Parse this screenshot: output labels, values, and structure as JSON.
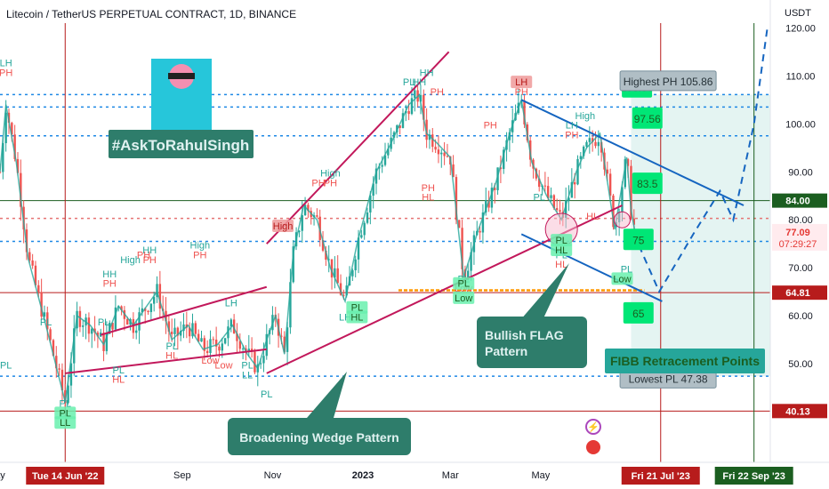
{
  "header": {
    "title": "Litecoin / TetherUS PERPETUAL CONTRACT, 1D, BINANCE",
    "currency": "USDT"
  },
  "colors": {
    "up": "#26a69a",
    "down": "#ef5350",
    "wedge": "#c2185b",
    "flag": "#1565c0",
    "level_blue": "#2962ff",
    "green_label": "#00c853",
    "teal_callout": "#2e7d6b"
  },
  "chart_data": {
    "type": "line",
    "symbol": "LTCUSDT.P",
    "interval": "1D",
    "ylim": [
      35,
      121
    ],
    "y_ticks": [
      50,
      60,
      70,
      80,
      90,
      100,
      110,
      120
    ],
    "y_tick_labels": [
      "50.00",
      "60.00",
      "70.00",
      "80.00",
      "90.00",
      "100.00",
      "110.00",
      "120.00"
    ],
    "x_tick_labels": [
      "ay",
      "Sep",
      "Nov",
      "2023",
      "Mar",
      "May"
    ],
    "x_tick_dates": [
      "2022-05-01",
      "2022-09-01",
      "2022-11-01",
      "2023-01-01",
      "2023-03-01",
      "2023-05-01"
    ],
    "x_range": [
      "2022-05-01",
      "2023-10-03"
    ],
    "x_date_highlights": [
      {
        "label": "Tue 14 Jun '22",
        "date": "2022-06-14",
        "color": "#b71c1c"
      },
      {
        "label": "Fri 21 Jul '23",
        "date": "2023-07-21",
        "color": "#b71c1c"
      },
      {
        "label": "Fri 22 Sep '23",
        "date": "2023-09-22",
        "color": "#1b5e20"
      }
    ],
    "price_path": {
      "dates": [
        "2022-05-01",
        "2022-05-05",
        "2022-05-12",
        "2022-05-20",
        "2022-06-01",
        "2022-06-14",
        "2022-06-22",
        "2022-07-01",
        "2022-07-10",
        "2022-07-20",
        "2022-07-30",
        "2022-08-08",
        "2022-08-15",
        "2022-08-25",
        "2022-09-05",
        "2022-09-15",
        "2022-09-25",
        "2022-10-05",
        "2022-10-15",
        "2022-10-22",
        "2022-10-28",
        "2022-11-03",
        "2022-11-09",
        "2022-11-15",
        "2022-11-22",
        "2022-12-01",
        "2022-12-10",
        "2022-12-20",
        "2022-12-28",
        "2023-01-10",
        "2023-01-20",
        "2023-02-01",
        "2023-02-08",
        "2023-02-13",
        "2023-02-20",
        "2023-03-01",
        "2023-03-10",
        "2023-03-20",
        "2023-04-01",
        "2023-04-10",
        "2023-04-18",
        "2023-04-25",
        "2023-05-05",
        "2023-05-15",
        "2023-05-25",
        "2023-06-01",
        "2023-06-10",
        "2023-06-20",
        "2023-06-28",
        "2023-07-01",
        "2023-07-04"
      ],
      "values": [
        90,
        104,
        92,
        72,
        58,
        42,
        60,
        58,
        54,
        62,
        58,
        62,
        65,
        55,
        58,
        53,
        54,
        58,
        52,
        49,
        55,
        60,
        52,
        73,
        83,
        80,
        70,
        63,
        75,
        90,
        96,
        104,
        106,
        98,
        96,
        93,
        68,
        78,
        88,
        98,
        105,
        92,
        85,
        80,
        90,
        95,
        98,
        78,
        93,
        82,
        77
      ]
    },
    "current_price": 77.09,
    "countdown": "07:29:27",
    "price_levels": [
      {
        "value": 84.0,
        "label": "84.00",
        "style": "solid",
        "color": "#1b5e20"
      },
      {
        "value": 64.81,
        "label": "64.81",
        "style": "solid",
        "color": "#b71c1c"
      },
      {
        "value": 40.13,
        "label": "40.13",
        "style": "solid",
        "color": "#b71c1c"
      },
      {
        "value": 106.1,
        "label": "",
        "style": "dotted",
        "color": "#1e88e5"
      },
      {
        "value": 103.5,
        "label": "",
        "style": "dotted",
        "color": "#1e88e5"
      },
      {
        "value": 97.5,
        "label": "",
        "style": "dotted",
        "color": "#1e88e5"
      },
      {
        "value": 80.3,
        "label": "",
        "style": "dotted",
        "color": "#e57373"
      },
      {
        "value": 75.5,
        "label": "",
        "style": "dotted",
        "color": "#1e88e5"
      },
      {
        "value": 47.4,
        "label": "",
        "style": "dotted",
        "color": "#1e88e5"
      }
    ],
    "highest_label": "Highest PH 105.86",
    "lowest_label": "Lowest PL 47.38",
    "fib_targets": [
      "103.56",
      "97.56",
      "83.5",
      "75",
      "65"
    ],
    "pivot_labels": [
      {
        "text": "LH",
        "color": "#26a69a"
      },
      {
        "text": "PH",
        "color": "#ef5350"
      },
      {
        "text": "PL",
        "color": "#26a69a"
      },
      {
        "text": "LL",
        "color": "#26a69a"
      },
      {
        "text": "HH",
        "color": "#26a69a"
      },
      {
        "text": "High",
        "color": "#26a69a"
      },
      {
        "text": "HL",
        "color": "#ef5350"
      },
      {
        "text": "Low",
        "color": "#ef5350"
      },
      {
        "text": "LH",
        "color": "#ef5350"
      }
    ]
  },
  "annotations": {
    "author_tag": "#AskToRahulSingh",
    "broadening_wedge": "Broadening Wedge Pattern",
    "bullish_flag_line1": "Bullish FLAG",
    "bullish_flag_line2": "Pattern",
    "fibb": "FIBB Retracement Points"
  }
}
